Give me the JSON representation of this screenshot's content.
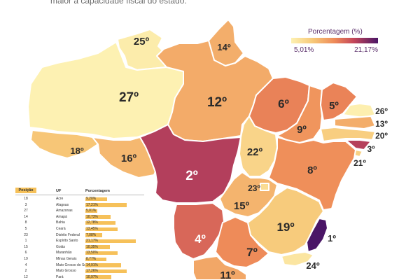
{
  "header": {
    "caption": "maior a capacidade fiscal do estado."
  },
  "legend": {
    "title": "Porcentagem (%)",
    "min_label": "5,01%",
    "max_label": "21,17%",
    "min_color": "#fde9a8",
    "max_color": "#4a1566"
  },
  "map": {
    "states": [
      {
        "id": "roraima",
        "rank": "25º",
        "value": 5.5
      },
      {
        "id": "amapa",
        "rank": "14º",
        "value": 10.73
      },
      {
        "id": "amazonas",
        "rank": "27º",
        "value": 5.01
      },
      {
        "id": "para",
        "rank": "12º",
        "value": 10.97
      },
      {
        "id": "acre",
        "rank": "18º",
        "value": 9.2
      },
      {
        "id": "rondonia",
        "rank": "16º",
        "value": 10.1
      },
      {
        "id": "mato_grosso",
        "rank": "2º",
        "value": 17.26
      },
      {
        "id": "maranhao",
        "rank": "6º",
        "value": 13.5
      },
      {
        "id": "piaui",
        "rank": "9º",
        "value": 12.4
      },
      {
        "id": "ceara",
        "rank": "5º",
        "value": 13.45
      },
      {
        "id": "rio_grande_do_norte",
        "rank": "26º",
        "value": 5.2
      },
      {
        "id": "paraiba",
        "rank": "13º",
        "value": 10.8
      },
      {
        "id": "pernambuco",
        "rank": "20º",
        "value": 8.5
      },
      {
        "id": "alagoas",
        "rank": "3º",
        "value": 17.21
      },
      {
        "id": "sergipe",
        "rank": "21º",
        "value": 8.2
      },
      {
        "id": "tocantins",
        "rank": "22º",
        "value": 7.9
      },
      {
        "id": "bahia",
        "rank": "8º",
        "value": 12.78
      },
      {
        "id": "distrito_federal",
        "rank": "23º",
        "value": 7.08
      },
      {
        "id": "goias",
        "rank": "15º",
        "value": 10.35
      },
      {
        "id": "minas_gerais",
        "rank": "19º",
        "value": 8.77
      },
      {
        "id": "espirito_santo",
        "rank": "1º",
        "value": 21.17
      },
      {
        "id": "mato_grosso_do_sul",
        "rank": "4º",
        "value": 14.91
      },
      {
        "id": "sao_paulo",
        "rank": "7º",
        "value": 13.0
      },
      {
        "id": "rio_de_janeiro",
        "rank": "24º",
        "value": 6.2
      },
      {
        "id": "parana",
        "rank": "11º",
        "value": 11.2
      }
    ]
  },
  "table": {
    "headers": {
      "position": "Posição",
      "uf": "UF",
      "percent": "Porcentagem"
    },
    "rows": [
      {
        "position": "18",
        "uf": "Acre",
        "percent": "9,20%",
        "value": 9.2
      },
      {
        "position": "3",
        "uf": "Alagoas",
        "percent": "17,21%",
        "value": 17.21
      },
      {
        "position": "27",
        "uf": "Amazonas",
        "percent": "5,01%",
        "value": 5.01
      },
      {
        "position": "14",
        "uf": "Amapá",
        "percent": "10,73%",
        "value": 10.73
      },
      {
        "position": "8",
        "uf": "Bahia",
        "percent": "12,78%",
        "value": 12.78
      },
      {
        "position": "5",
        "uf": "Ceará",
        "percent": "13,45%",
        "value": 13.45
      },
      {
        "position": "23",
        "uf": "Distrito Federal",
        "percent": "7,08%",
        "value": 7.08
      },
      {
        "position": "1",
        "uf": "Espírito Santo",
        "percent": "21,17%",
        "value": 21.17
      },
      {
        "position": "15",
        "uf": "Goiás",
        "percent": "10,35%",
        "value": 10.35
      },
      {
        "position": "6",
        "uf": "Maranhão",
        "percent": "13,50%",
        "value": 13.5
      },
      {
        "position": "19",
        "uf": "Minas Gerais",
        "percent": "8,77%",
        "value": 8.77
      },
      {
        "position": "4",
        "uf": "Mato Grosso do Sul",
        "percent": "14,91%",
        "value": 14.91
      },
      {
        "position": "2",
        "uf": "Mato Grosso",
        "percent": "17,26%",
        "value": 17.26
      },
      {
        "position": "12",
        "uf": "Pará",
        "percent": "10,97%",
        "value": 10.97
      }
    ]
  }
}
